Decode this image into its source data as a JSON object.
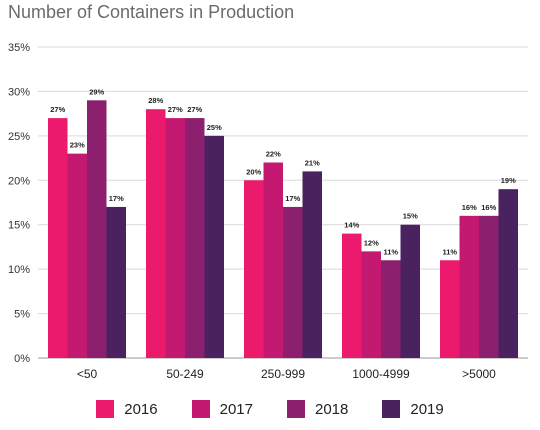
{
  "title": "Number of Containers in Production",
  "chart_data": {
    "type": "bar",
    "title": "Number of Containers in Production",
    "categories": [
      "<50",
      "50-249",
      "250-999",
      "1000-4999",
      ">5000"
    ],
    "series": [
      {
        "name": "2016",
        "color": "#ec1a6c",
        "values": [
          27,
          28,
          20,
          14,
          11
        ]
      },
      {
        "name": "2017",
        "color": "#c41970",
        "values": [
          23,
          27,
          22,
          12,
          16
        ]
      },
      {
        "name": "2018",
        "color": "#8c1f6e",
        "values": [
          29,
          27,
          17,
          11,
          16
        ]
      },
      {
        "name": "2019",
        "color": "#4b2260",
        "values": [
          17,
          25,
          21,
          15,
          19
        ]
      }
    ],
    "yticks": [
      "0%",
      "5%",
      "10%",
      "15%",
      "20%",
      "25%",
      "30%",
      "35%"
    ],
    "ylim": [
      0,
      35
    ],
    "grid": true,
    "legend_position": "bottom"
  }
}
